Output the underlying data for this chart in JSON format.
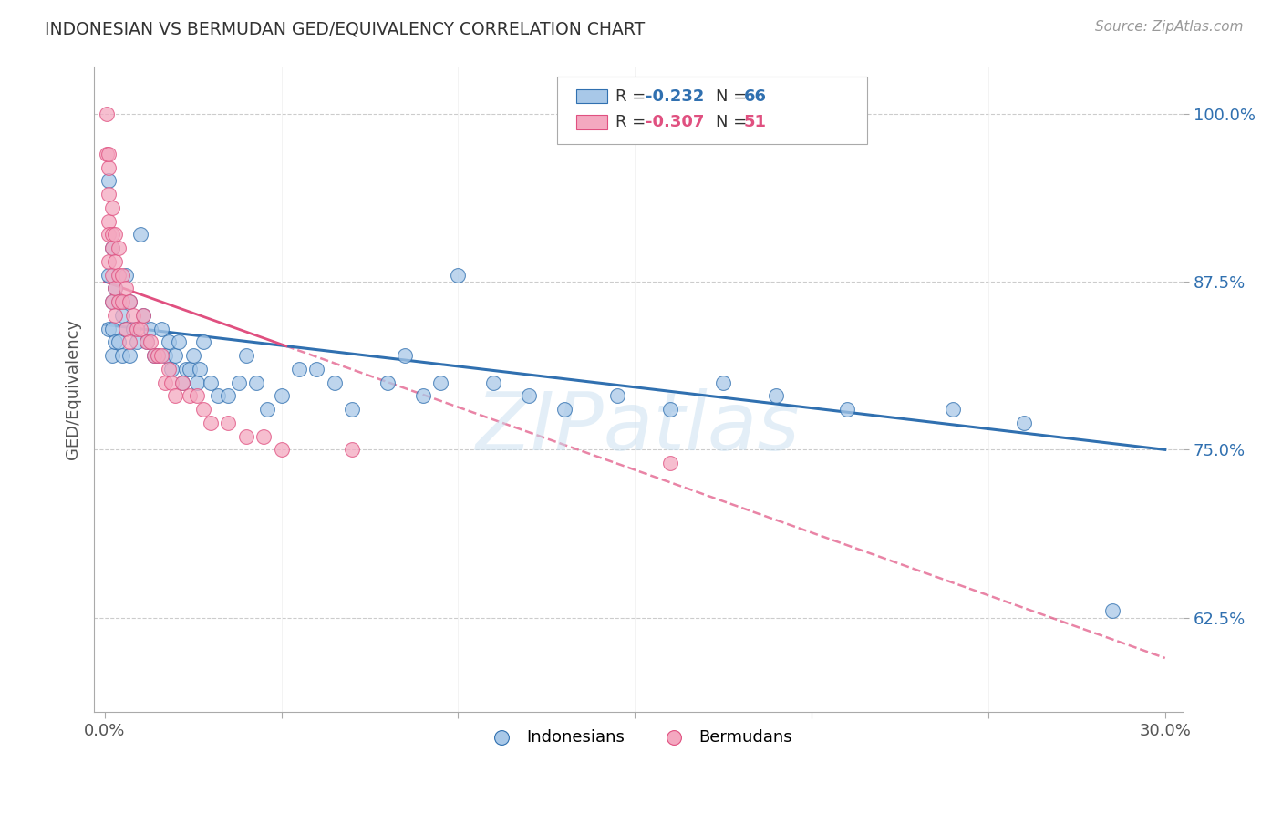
{
  "title": "INDONESIAN VS BERMUDAN GED/EQUIVALENCY CORRELATION CHART",
  "source": "Source: ZipAtlas.com",
  "xlabel": "",
  "ylabel": "GED/Equivalency",
  "xlim": [
    -0.003,
    0.305
  ],
  "ylim": [
    0.555,
    1.035
  ],
  "xticks": [
    0.0,
    0.05,
    0.1,
    0.15,
    0.2,
    0.25,
    0.3
  ],
  "xticklabels": [
    "0.0%",
    "",
    "",
    "",
    "",
    "",
    "30.0%"
  ],
  "yticks": [
    0.625,
    0.75,
    0.875,
    1.0
  ],
  "yticklabels": [
    "62.5%",
    "75.0%",
    "87.5%",
    "100.0%"
  ],
  "blue_color": "#a8c8e8",
  "pink_color": "#f4a8c0",
  "trend_blue": "#3070b0",
  "trend_pink": "#e05080",
  "watermark": "ZIPatlas",
  "indonesian_x": [
    0.001,
    0.001,
    0.001,
    0.002,
    0.002,
    0.002,
    0.002,
    0.003,
    0.003,
    0.004,
    0.004,
    0.005,
    0.005,
    0.006,
    0.006,
    0.007,
    0.007,
    0.008,
    0.009,
    0.01,
    0.011,
    0.012,
    0.013,
    0.014,
    0.015,
    0.016,
    0.017,
    0.018,
    0.019,
    0.02,
    0.021,
    0.022,
    0.023,
    0.024,
    0.025,
    0.026,
    0.027,
    0.028,
    0.03,
    0.032,
    0.035,
    0.038,
    0.04,
    0.043,
    0.046,
    0.05,
    0.055,
    0.06,
    0.065,
    0.07,
    0.08,
    0.085,
    0.09,
    0.095,
    0.1,
    0.11,
    0.12,
    0.13,
    0.145,
    0.16,
    0.175,
    0.19,
    0.21,
    0.24,
    0.26,
    0.285
  ],
  "indonesian_y": [
    0.95,
    0.88,
    0.84,
    0.9,
    0.86,
    0.84,
    0.82,
    0.87,
    0.83,
    0.86,
    0.83,
    0.85,
    0.82,
    0.88,
    0.84,
    0.86,
    0.82,
    0.84,
    0.83,
    0.91,
    0.85,
    0.83,
    0.84,
    0.82,
    0.82,
    0.84,
    0.82,
    0.83,
    0.81,
    0.82,
    0.83,
    0.8,
    0.81,
    0.81,
    0.82,
    0.8,
    0.81,
    0.83,
    0.8,
    0.79,
    0.79,
    0.8,
    0.82,
    0.8,
    0.78,
    0.79,
    0.81,
    0.81,
    0.8,
    0.78,
    0.8,
    0.82,
    0.79,
    0.8,
    0.88,
    0.8,
    0.79,
    0.78,
    0.79,
    0.78,
    0.8,
    0.79,
    0.78,
    0.78,
    0.77,
    0.63
  ],
  "bermudan_x": [
    0.0005,
    0.0007,
    0.001,
    0.001,
    0.001,
    0.001,
    0.001,
    0.001,
    0.002,
    0.002,
    0.002,
    0.002,
    0.002,
    0.003,
    0.003,
    0.003,
    0.003,
    0.004,
    0.004,
    0.004,
    0.005,
    0.005,
    0.006,
    0.006,
    0.007,
    0.007,
    0.008,
    0.009,
    0.01,
    0.011,
    0.012,
    0.013,
    0.014,
    0.015,
    0.016,
    0.017,
    0.018,
    0.019,
    0.02,
    0.022,
    0.024,
    0.026,
    0.028,
    0.03,
    0.035,
    0.04,
    0.045,
    0.05,
    0.07,
    0.16
  ],
  "bermudan_y": [
    1.0,
    0.97,
    0.96,
    0.94,
    0.92,
    0.91,
    0.89,
    0.97,
    0.93,
    0.91,
    0.9,
    0.88,
    0.86,
    0.91,
    0.89,
    0.87,
    0.85,
    0.9,
    0.88,
    0.86,
    0.88,
    0.86,
    0.87,
    0.84,
    0.86,
    0.83,
    0.85,
    0.84,
    0.84,
    0.85,
    0.83,
    0.83,
    0.82,
    0.82,
    0.82,
    0.8,
    0.81,
    0.8,
    0.79,
    0.8,
    0.79,
    0.79,
    0.78,
    0.77,
    0.77,
    0.76,
    0.76,
    0.75,
    0.75,
    0.74
  ],
  "blue_trend_x0": 0.0,
  "blue_trend_y0": 0.843,
  "blue_trend_x1": 0.3,
  "blue_trend_y1": 0.75,
  "pink_trend_x0": 0.0,
  "pink_trend_y0": 0.875,
  "pink_trend_x1": 0.3,
  "pink_trend_y1": 0.595
}
